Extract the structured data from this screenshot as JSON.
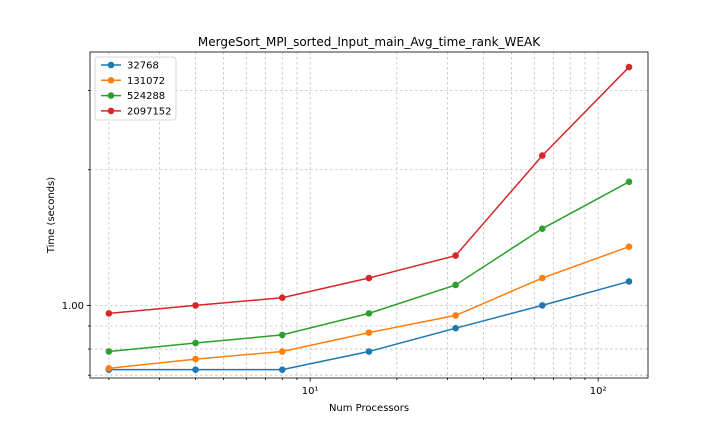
{
  "chart_data": {
    "type": "line",
    "title": "MergeSort_MPI_sorted_Input_main_Avg_time_rank_WEAK",
    "xlabel": "Num Processors",
    "ylabel": "Time (seconds)",
    "xscale": "log",
    "yscale": "log",
    "xlim": [
      1.72,
      149
    ],
    "ylim": [
      0.69,
      3.65
    ],
    "x": [
      2,
      4,
      8,
      16,
      32,
      64,
      128
    ],
    "xticks": [
      {
        "value": 10,
        "label": "10¹"
      },
      {
        "value": 100,
        "label": "10²"
      }
    ],
    "yticks": [
      {
        "value": 1.0,
        "label": "1.00"
      }
    ],
    "grid": true,
    "legend_position": "upper-left",
    "series": [
      {
        "name": "32768",
        "color": "#1f77b4",
        "values": [
          0.72,
          0.72,
          0.72,
          0.79,
          0.89,
          1.0,
          1.13
        ]
      },
      {
        "name": "131072",
        "color": "#ff7f0e",
        "values": [
          0.725,
          0.76,
          0.79,
          0.87,
          0.95,
          1.15,
          1.35
        ]
      },
      {
        "name": "524288",
        "color": "#2ca02c",
        "values": [
          0.79,
          0.825,
          0.86,
          0.96,
          1.11,
          1.48,
          1.88
        ]
      },
      {
        "name": "2097152",
        "color": "#d62728",
        "values": [
          0.96,
          1.0,
          1.04,
          1.15,
          1.29,
          2.15,
          3.38
        ]
      }
    ]
  }
}
